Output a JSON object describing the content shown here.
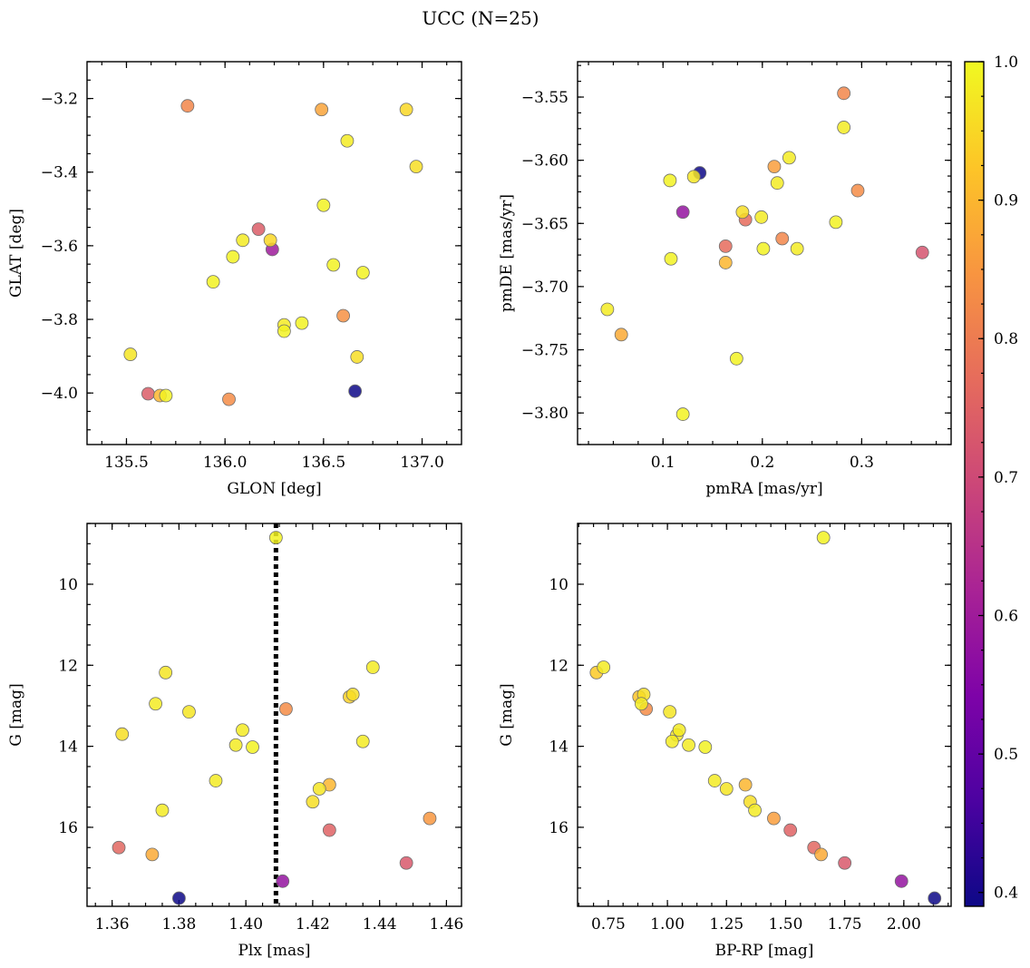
{
  "figure_title": "UCC (N=25)",
  "colorbar": {
    "vmin": 0.39,
    "vmax": 1.0,
    "ticks": [
      "0.4",
      "0.5",
      "0.6",
      "0.7",
      "0.8",
      "0.9",
      "1.0"
    ],
    "colormap": "plasma"
  },
  "chart_data": [
    {
      "type": "scatter",
      "title": "",
      "xlabel": "GLON [deg]",
      "ylabel": "GLAT [deg]",
      "xlim": [
        135.3,
        137.2
      ],
      "ylim": [
        -4.14,
        -3.1
      ],
      "y_inverted": false,
      "grid": false,
      "xticks": [
        "135.5",
        "136.0",
        "136.5",
        "137.0"
      ],
      "yticks": [
        "−3.2",
        "−3.4",
        "−3.6",
        "−3.8",
        "−4.0"
      ],
      "points": [
        {
          "x": 135.81,
          "y": -3.22,
          "c": 0.82
        },
        {
          "x": 136.49,
          "y": -3.23,
          "c": 0.87
        },
        {
          "x": 136.92,
          "y": -3.23,
          "c": 0.95
        },
        {
          "x": 136.62,
          "y": -3.315,
          "c": 0.98
        },
        {
          "x": 136.97,
          "y": -3.385,
          "c": 0.96
        },
        {
          "x": 136.5,
          "y": -3.49,
          "c": 0.99
        },
        {
          "x": 136.17,
          "y": -3.555,
          "c": 0.74
        },
        {
          "x": 136.09,
          "y": -3.585,
          "c": 0.98
        },
        {
          "x": 136.23,
          "y": -3.585,
          "c": 0.95
        },
        {
          "x": 136.24,
          "y": -3.61,
          "c": 0.6
        },
        {
          "x": 136.04,
          "y": -3.63,
          "c": 0.99
        },
        {
          "x": 136.55,
          "y": -3.652,
          "c": 0.99
        },
        {
          "x": 136.7,
          "y": -3.673,
          "c": 0.99
        },
        {
          "x": 135.94,
          "y": -3.698,
          "c": 0.99
        },
        {
          "x": 136.6,
          "y": -3.79,
          "c": 0.84
        },
        {
          "x": 136.3,
          "y": -3.815,
          "c": 0.98
        },
        {
          "x": 136.39,
          "y": -3.81,
          "c": 0.99
        },
        {
          "x": 136.3,
          "y": -3.832,
          "c": 0.99
        },
        {
          "x": 135.52,
          "y": -3.895,
          "c": 0.97
        },
        {
          "x": 136.67,
          "y": -3.902,
          "c": 0.96
        },
        {
          "x": 135.61,
          "y": -4.002,
          "c": 0.74
        },
        {
          "x": 135.67,
          "y": -4.007,
          "c": 0.9
        },
        {
          "x": 135.7,
          "y": -4.007,
          "c": 0.99
        },
        {
          "x": 136.02,
          "y": -4.017,
          "c": 0.83
        },
        {
          "x": 136.66,
          "y": -3.995,
          "c": 0.39
        }
      ]
    },
    {
      "type": "scatter",
      "title": "",
      "xlabel": "pmRA [mas/yr]",
      "ylabel": "pmDE [mas/yr]",
      "xlim": [
        0.014,
        0.39
      ],
      "ylim": [
        -3.825,
        -3.522
      ],
      "y_inverted": false,
      "grid": false,
      "xticks": [
        "0.1",
        "0.2",
        "0.3"
      ],
      "yticks": [
        "−3.55",
        "−3.60",
        "−3.65",
        "−3.70",
        "−3.75",
        "−3.80"
      ],
      "points": [
        {
          "x": 0.282,
          "y": -3.547,
          "c": 0.82
        },
        {
          "x": 0.282,
          "y": -3.574,
          "c": 0.98
        },
        {
          "x": 0.227,
          "y": -3.598,
          "c": 0.98
        },
        {
          "x": 0.212,
          "y": -3.605,
          "c": 0.86
        },
        {
          "x": 0.137,
          "y": -3.61,
          "c": 0.39
        },
        {
          "x": 0.131,
          "y": -3.613,
          "c": 0.97
        },
        {
          "x": 0.107,
          "y": -3.616,
          "c": 0.99
        },
        {
          "x": 0.215,
          "y": -3.618,
          "c": 0.98
        },
        {
          "x": 0.296,
          "y": -3.624,
          "c": 0.83
        },
        {
          "x": 0.12,
          "y": -3.641,
          "c": 0.58
        },
        {
          "x": 0.18,
          "y": -3.641,
          "c": 0.96
        },
        {
          "x": 0.183,
          "y": -3.647,
          "c": 0.77
        },
        {
          "x": 0.199,
          "y": -3.645,
          "c": 0.98
        },
        {
          "x": 0.274,
          "y": -3.649,
          "c": 0.99
        },
        {
          "x": 0.22,
          "y": -3.662,
          "c": 0.82
        },
        {
          "x": 0.163,
          "y": -3.668,
          "c": 0.77
        },
        {
          "x": 0.201,
          "y": -3.67,
          "c": 0.99
        },
        {
          "x": 0.235,
          "y": -3.67,
          "c": 0.98
        },
        {
          "x": 0.361,
          "y": -3.673,
          "c": 0.72
        },
        {
          "x": 0.108,
          "y": -3.678,
          "c": 0.99
        },
        {
          "x": 0.163,
          "y": -3.681,
          "c": 0.9
        },
        {
          "x": 0.044,
          "y": -3.718,
          "c": 0.98
        },
        {
          "x": 0.058,
          "y": -3.738,
          "c": 0.88
        },
        {
          "x": 0.174,
          "y": -3.757,
          "c": 0.99
        },
        {
          "x": 0.12,
          "y": -3.801,
          "c": 0.99
        }
      ]
    },
    {
      "type": "scatter",
      "title": "",
      "xlabel": "Plx [mas]",
      "ylabel": "G [mag]",
      "xlim": [
        1.3525,
        1.4645
      ],
      "ylim": [
        17.95,
        8.5
      ],
      "y_inverted": true,
      "grid": false,
      "xticks": [
        "1.36",
        "1.38",
        "1.40",
        "1.42",
        "1.44",
        "1.46"
      ],
      "yticks": [
        "10",
        "12",
        "14",
        "16"
      ],
      "vline": {
        "x": 1.409,
        "style": "dotted",
        "color": "#000000"
      },
      "points": [
        {
          "x": 1.409,
          "y": 8.85,
          "c": 0.99
        },
        {
          "x": 1.438,
          "y": 12.05,
          "c": 0.98
        },
        {
          "x": 1.376,
          "y": 12.18,
          "c": 0.97
        },
        {
          "x": 1.432,
          "y": 12.72,
          "c": 0.96
        },
        {
          "x": 1.431,
          "y": 12.78,
          "c": 0.94
        },
        {
          "x": 1.373,
          "y": 12.95,
          "c": 0.98
        },
        {
          "x": 1.412,
          "y": 13.08,
          "c": 0.83
        },
        {
          "x": 1.383,
          "y": 13.15,
          "c": 0.97
        },
        {
          "x": 1.363,
          "y": 13.7,
          "c": 0.96
        },
        {
          "x": 1.399,
          "y": 13.6,
          "c": 0.98
        },
        {
          "x": 1.397,
          "y": 13.97,
          "c": 0.98
        },
        {
          "x": 1.402,
          "y": 14.02,
          "c": 0.99
        },
        {
          "x": 1.435,
          "y": 13.88,
          "c": 0.98
        },
        {
          "x": 1.391,
          "y": 14.85,
          "c": 0.98
        },
        {
          "x": 1.425,
          "y": 14.95,
          "c": 0.9
        },
        {
          "x": 1.422,
          "y": 15.05,
          "c": 0.97
        },
        {
          "x": 1.42,
          "y": 15.37,
          "c": 0.96
        },
        {
          "x": 1.375,
          "y": 15.58,
          "c": 0.98
        },
        {
          "x": 1.455,
          "y": 15.78,
          "c": 0.85
        },
        {
          "x": 1.425,
          "y": 16.07,
          "c": 0.75
        },
        {
          "x": 1.362,
          "y": 16.5,
          "c": 0.76
        },
        {
          "x": 1.372,
          "y": 16.67,
          "c": 0.88
        },
        {
          "x": 1.448,
          "y": 16.88,
          "c": 0.73
        },
        {
          "x": 1.411,
          "y": 17.33,
          "c": 0.58
        },
        {
          "x": 1.38,
          "y": 17.75,
          "c": 0.39
        }
      ]
    },
    {
      "type": "scatter",
      "title": "",
      "xlabel": "BP-RP [mag]",
      "ylabel": "G [mag]",
      "xlim": [
        0.62,
        2.2
      ],
      "ylim": [
        17.95,
        8.5
      ],
      "y_inverted": true,
      "grid": false,
      "xticks": [
        "0.75",
        "1.00",
        "1.25",
        "1.50",
        "1.75",
        "2.00"
      ],
      "yticks": [
        "10",
        "12",
        "14",
        "16"
      ],
      "points": [
        {
          "x": 1.66,
          "y": 8.85,
          "c": 0.99
        },
        {
          "x": 0.7,
          "y": 12.18,
          "c": 0.93
        },
        {
          "x": 0.73,
          "y": 12.05,
          "c": 0.98
        },
        {
          "x": 0.88,
          "y": 12.78,
          "c": 0.92
        },
        {
          "x": 0.9,
          "y": 12.72,
          "c": 0.96
        },
        {
          "x": 0.89,
          "y": 12.95,
          "c": 0.98
        },
        {
          "x": 0.91,
          "y": 13.08,
          "c": 0.83
        },
        {
          "x": 1.01,
          "y": 13.15,
          "c": 0.97
        },
        {
          "x": 1.05,
          "y": 13.6,
          "c": 0.98
        },
        {
          "x": 1.04,
          "y": 13.72,
          "c": 0.97
        },
        {
          "x": 1.02,
          "y": 13.88,
          "c": 0.98
        },
        {
          "x": 1.09,
          "y": 13.97,
          "c": 0.98
        },
        {
          "x": 1.16,
          "y": 14.02,
          "c": 0.99
        },
        {
          "x": 1.2,
          "y": 14.85,
          "c": 0.98
        },
        {
          "x": 1.33,
          "y": 14.95,
          "c": 0.9
        },
        {
          "x": 1.25,
          "y": 15.05,
          "c": 0.97
        },
        {
          "x": 1.35,
          "y": 15.37,
          "c": 0.96
        },
        {
          "x": 1.37,
          "y": 15.58,
          "c": 0.98
        },
        {
          "x": 1.45,
          "y": 15.78,
          "c": 0.86
        },
        {
          "x": 1.52,
          "y": 16.07,
          "c": 0.75
        },
        {
          "x": 1.62,
          "y": 16.5,
          "c": 0.76
        },
        {
          "x": 1.65,
          "y": 16.67,
          "c": 0.88
        },
        {
          "x": 1.75,
          "y": 16.88,
          "c": 0.73
        },
        {
          "x": 1.99,
          "y": 17.33,
          "c": 0.58
        },
        {
          "x": 2.13,
          "y": 17.75,
          "c": 0.39
        }
      ]
    }
  ]
}
